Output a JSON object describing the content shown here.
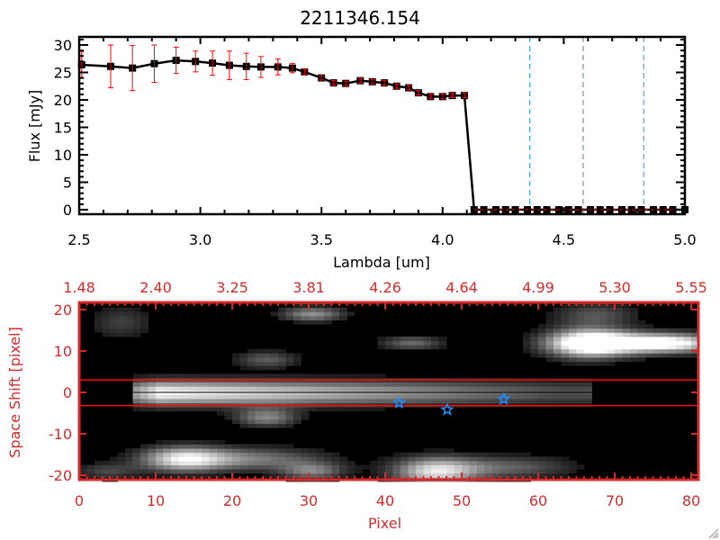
{
  "chart_data": [
    {
      "type": "line",
      "title": "2211346.154",
      "xlabel": "Lambda [um]",
      "ylabel": "Flux [mJy]",
      "xlim": [
        2.5,
        5.0
      ],
      "ylim": [
        -1,
        31
      ],
      "xticks": [
        "2.5",
        "3.0",
        "3.5",
        "4.0",
        "4.5",
        "5.0"
      ],
      "yticks": [
        "0",
        "5",
        "10",
        "15",
        "20",
        "25",
        "30"
      ],
      "grid": false,
      "series": [
        {
          "name": "flux",
          "x": [
            2.51,
            2.63,
            2.72,
            2.81,
            2.9,
            2.98,
            3.05,
            3.12,
            3.19,
            3.25,
            3.32,
            3.38,
            3.43,
            3.5,
            3.55,
            3.6,
            3.66,
            3.71,
            3.76,
            3.81,
            3.86,
            3.9,
            3.95,
            4.0,
            4.04,
            4.09,
            4.13,
            4.17,
            4.22,
            4.26,
            4.3,
            4.35,
            4.39,
            4.43,
            4.48,
            4.52,
            4.56,
            4.61,
            4.65,
            4.69,
            4.74,
            4.78,
            4.82,
            4.87,
            4.91,
            4.95,
            5.0
          ],
          "y": [
            26.4,
            26.1,
            25.8,
            26.6,
            27.2,
            27.0,
            26.7,
            26.3,
            26.1,
            26.0,
            26.0,
            25.8,
            25.1,
            24.0,
            23.1,
            23.0,
            23.5,
            23.3,
            23.1,
            22.5,
            22.2,
            21.3,
            20.6,
            20.6,
            20.8,
            20.8,
            0,
            0,
            0,
            0,
            0,
            0,
            0,
            0,
            0,
            0,
            0,
            0,
            0,
            0,
            0,
            0,
            0,
            0,
            0,
            0,
            0
          ],
          "yerr": [
            2.4,
            3.9,
            4.1,
            3.4,
            2.4,
            1.9,
            2.2,
            2.6,
            2.4,
            1.9,
            1.45,
            0.85,
            0.5,
            0.4,
            0.4,
            0.4,
            0.4,
            0.4,
            0.4,
            0.4,
            0.4,
            0.4,
            0.4,
            0.4,
            0.4,
            0.4,
            0,
            0,
            0,
            0,
            0,
            0,
            0,
            0,
            0,
            0,
            0,
            0,
            0,
            0,
            0,
            0,
            0,
            0,
            0,
            0,
            0
          ]
        }
      ],
      "vlines": [
        4.36,
        4.58,
        4.83
      ],
      "hline_dashed": 0,
      "colors": {
        "line": "#000000",
        "errorbar": "#ff0000",
        "vline": "#1e90ff",
        "hline": "#ff0000"
      }
    },
    {
      "type": "heatmap",
      "xlabel": "Pixel",
      "ylabel": "Space Shift [pixel]",
      "xlim": [
        0,
        81
      ],
      "ylim": [
        -21,
        21
      ],
      "xticks": [
        "0",
        "10",
        "20",
        "30",
        "40",
        "50",
        "60",
        "70",
        "80"
      ],
      "yticks": [
        "-20",
        "-10",
        "0",
        "10",
        "20"
      ],
      "top_xticks": [
        "1.48",
        "2.40",
        "3.25",
        "3.81",
        "4.26",
        "4.64",
        "4.99",
        "5.30",
        "5.55"
      ],
      "aperture_lines": [
        3,
        -3.2
      ],
      "center_line": 0,
      "stars": [
        {
          "x": 41.8,
          "y": -2.5
        },
        {
          "x": 48.1,
          "y": -4.2
        },
        {
          "x": 55.5,
          "y": -1.6
        }
      ],
      "colors": {
        "axis": "#d42a2a",
        "aperture": "#ff0000",
        "star": "#1e90ff"
      }
    }
  ]
}
